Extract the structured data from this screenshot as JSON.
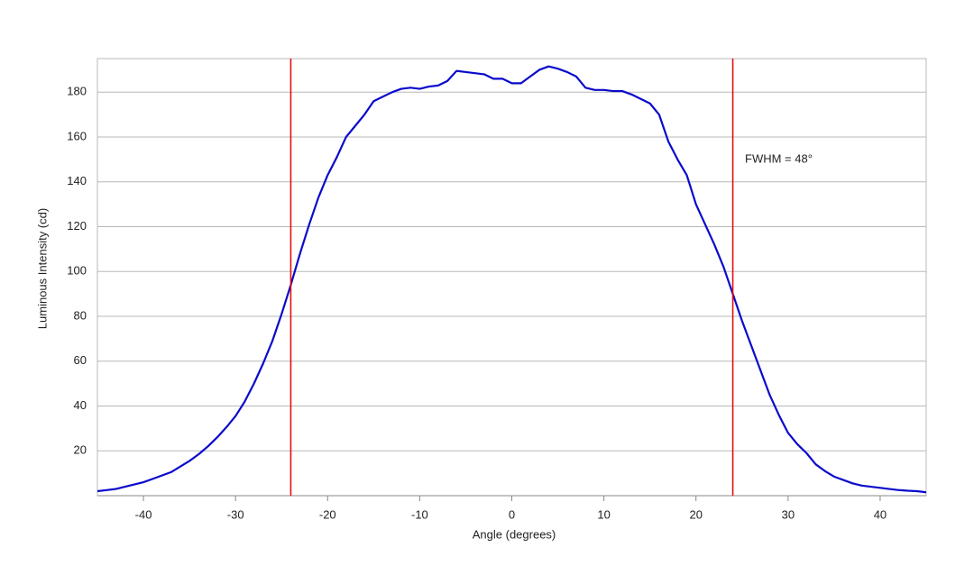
{
  "chart_data": {
    "type": "line",
    "x_label": "Angle (degrees)",
    "y_label": "Luminous Intensity (cd)",
    "annotation": "FWHM = 48°",
    "xlim": [
      -45,
      45
    ],
    "ylim": [
      0,
      195
    ],
    "xticks": [
      -40,
      -30,
      -20,
      -10,
      0,
      10,
      20,
      30,
      40
    ],
    "yticks": [
      20,
      40,
      60,
      80,
      100,
      120,
      140,
      160,
      180
    ],
    "grid": true,
    "vlines": [
      -24,
      24
    ],
    "vline_color": "#e01010",
    "x": [
      -45,
      -44,
      -43,
      -42,
      -41,
      -40,
      -39,
      -38,
      -37,
      -36,
      -35,
      -34,
      -33,
      -32,
      -31,
      -30,
      -29,
      -28,
      -27,
      -26,
      -25,
      -24,
      -23,
      -22,
      -21,
      -20,
      -19,
      -18,
      -17,
      -16,
      -15,
      -14,
      -13,
      -12,
      -11,
      -10,
      -9,
      -8,
      -7,
      -6,
      -5,
      -4,
      -3,
      -2,
      -1,
      0,
      1,
      2,
      3,
      4,
      5,
      6,
      7,
      8,
      9,
      10,
      11,
      12,
      13,
      14,
      15,
      16,
      17,
      18,
      19,
      20,
      21,
      22,
      23,
      24,
      25,
      26,
      27,
      28,
      29,
      30,
      31,
      32,
      33,
      34,
      35,
      36,
      37,
      38,
      39,
      40,
      41,
      42,
      43,
      44,
      45
    ],
    "series": [
      {
        "color": "#0a0acc",
        "values": [
          2,
          2.5,
          3,
          4,
          5,
          6,
          7.5,
          9,
          10.5,
          13,
          15.5,
          18.5,
          22,
          26,
          30.5,
          35.5,
          42,
          50,
          59,
          69,
          81,
          94,
          108,
          121,
          133,
          143,
          151,
          160,
          165,
          170,
          176,
          178,
          180,
          181.5,
          182,
          181.5,
          182.5,
          183,
          185,
          189.5,
          189,
          188.5,
          188,
          186,
          186,
          184,
          184,
          187,
          190,
          191.5,
          190.5,
          189,
          187,
          182,
          181,
          181,
          180.5,
          180.5,
          179,
          177,
          175,
          170,
          158,
          150,
          143,
          130,
          121,
          112,
          102,
          90,
          78,
          67,
          56,
          45,
          36,
          28,
          23,
          19,
          14,
          11,
          8.5,
          7,
          5.5,
          4.5,
          4,
          3.5,
          3,
          2.5,
          2.2,
          2,
          1.5
        ]
      }
    ]
  }
}
